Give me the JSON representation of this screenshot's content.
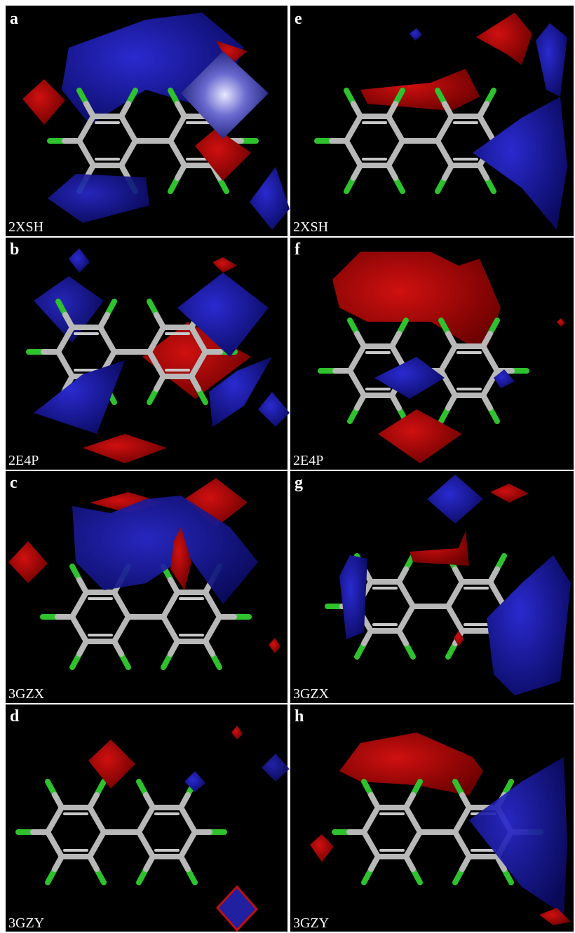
{
  "panels": [
    {
      "letter": "a",
      "label": "2XSH"
    },
    {
      "letter": "b",
      "label": "2E4P"
    },
    {
      "letter": "c",
      "label": "3GZX"
    },
    {
      "letter": "d",
      "label": "3GZY"
    },
    {
      "letter": "e",
      "label": "2XSH"
    },
    {
      "letter": "f",
      "label": "2E4P"
    },
    {
      "letter": "g",
      "label": "3GZX"
    },
    {
      "letter": "h",
      "label": "3GZY"
    }
  ]
}
